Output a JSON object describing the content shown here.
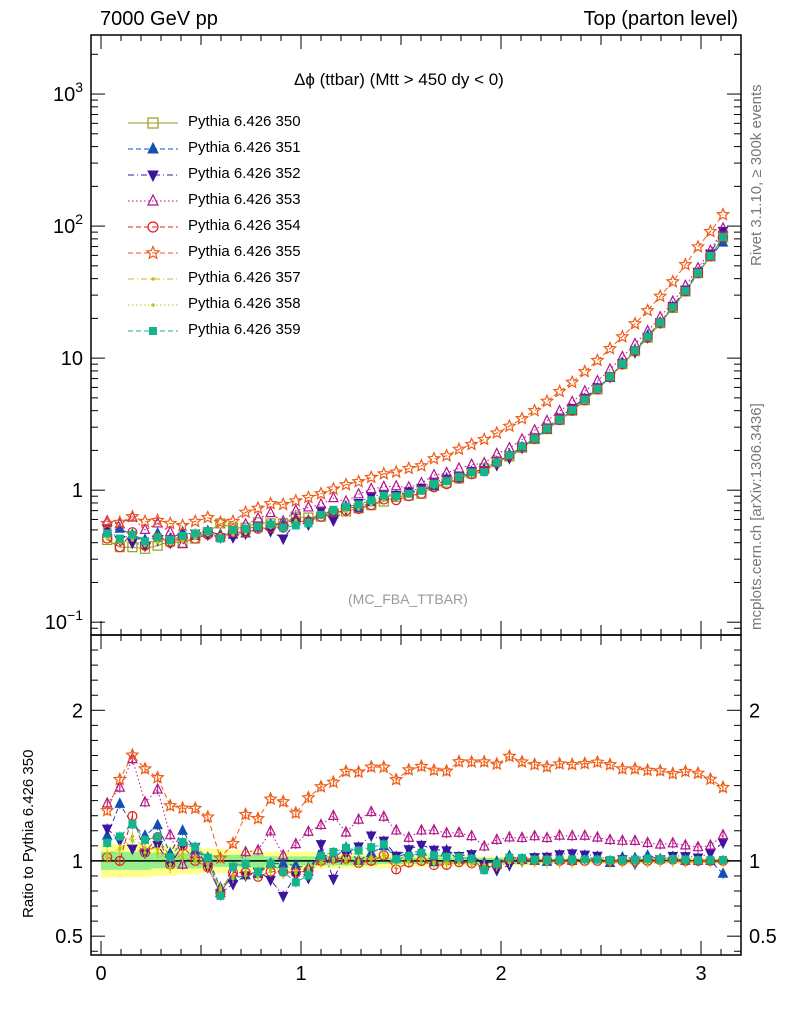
{
  "header": {
    "left": "7000 GeV pp",
    "right": "Top (parton level)"
  },
  "side_labels": {
    "rivet": "Rivet 3.1.10, ≥ 300k events",
    "mcplots": "mcplots.cern.ch [arXiv:1306.3436]"
  },
  "chart_data": [
    {
      "type": "line",
      "panel": "main",
      "title": "Δϕ (ttbar) (Mtt > 450 dy < 0)",
      "subtitle": "(MC_FBA_TTBAR)",
      "yscale": "log",
      "ylim": [
        0.08,
        2800
      ],
      "xlim": [
        -0.05,
        3.2
      ],
      "legend_position": "top-left",
      "x_ticks": [
        "0",
        "1",
        "2",
        "3"
      ],
      "y_tick_labels": [
        "10^-1",
        "1",
        "10",
        "10^2",
        "10^3"
      ],
      "x": [
        0.031,
        0.094,
        0.157,
        0.22,
        0.283,
        0.346,
        0.408,
        0.471,
        0.534,
        0.597,
        0.66,
        0.723,
        0.785,
        0.848,
        0.911,
        0.974,
        1.037,
        1.1,
        1.162,
        1.225,
        1.288,
        1.351,
        1.414,
        1.476,
        1.539,
        1.602,
        1.665,
        1.728,
        1.79,
        1.853,
        1.916,
        1.979,
        2.042,
        2.105,
        2.168,
        2.23,
        2.293,
        2.356,
        2.419,
        2.482,
        2.545,
        2.607,
        2.67,
        2.733,
        2.796,
        2.859,
        2.922,
        2.985,
        3.047,
        3.11
      ],
      "series": [
        {
          "name": "Pythia 6.426 350",
          "color": "#9a9a1e",
          "marker": "open-square",
          "dash": "solid",
          "values": [
            0.42,
            0.37,
            0.37,
            0.36,
            0.38,
            0.41,
            0.4,
            0.43,
            0.48,
            0.56,
            0.52,
            0.52,
            0.57,
            0.56,
            0.56,
            0.63,
            0.62,
            0.63,
            0.67,
            0.69,
            0.73,
            0.77,
            0.82,
            0.89,
            0.91,
            0.94,
            1.08,
            1.14,
            1.23,
            1.34,
            1.46,
            1.65,
            1.8,
            2.1,
            2.44,
            2.9,
            3.4,
            4.0,
            4.8,
            5.8,
            7.2,
            9.0,
            11.3,
            14.3,
            18.4,
            24.0,
            32.0,
            44.0,
            59.0,
            82.0
          ]
        },
        {
          "name": "Pythia 6.426 351",
          "color": "#1450b4",
          "marker": "filled-triangle-up",
          "dash": "dashed",
          "values": [
            0.49,
            0.51,
            0.46,
            0.42,
            0.47,
            0.43,
            0.48,
            0.46,
            0.49,
            0.46,
            0.46,
            0.47,
            0.52,
            0.55,
            0.55,
            0.61,
            0.59,
            0.66,
            0.68,
            0.75,
            0.73,
            0.81,
            0.9,
            0.91,
            0.96,
            1.0,
            1.07,
            1.22,
            1.24,
            1.38,
            1.44,
            1.64,
            1.86,
            2.11,
            2.44,
            2.88,
            3.42,
            4.0,
            4.9,
            5.9,
            7.1,
            9.2,
            11.5,
            14.8,
            18.6,
            24.5,
            32.0,
            44.0,
            59.0,
            75.0
          ]
        },
        {
          "name": "Pythia 6.426 352",
          "color": "#3c14a0",
          "marker": "filled-triangle-down",
          "dash": "dashdot",
          "values": [
            0.51,
            0.42,
            0.4,
            0.38,
            0.42,
            0.4,
            0.44,
            0.47,
            0.46,
            0.44,
            0.44,
            0.47,
            0.53,
            0.49,
            0.43,
            0.57,
            0.55,
            0.7,
            0.59,
            0.72,
            0.8,
            0.9,
            0.93,
            0.92,
            0.98,
            1.04,
            1.16,
            1.22,
            1.27,
            1.4,
            1.42,
            1.55,
            1.75,
            2.1,
            2.5,
            2.98,
            3.55,
            4.2,
            5.0,
            6.0,
            7.2,
            9.1,
            11.1,
            14.4,
            18.6,
            24.8,
            33.0,
            45.0,
            62.0,
            92.0
          ]
        },
        {
          "name": "Pythia 6.426 353",
          "color": "#b4148c",
          "marker": "open-triangle-up",
          "dash": "dotted",
          "values": [
            0.58,
            0.55,
            0.62,
            0.5,
            0.56,
            0.48,
            0.39,
            0.45,
            0.48,
            0.44,
            0.48,
            0.55,
            0.61,
            0.67,
            0.58,
            0.7,
            0.74,
            0.78,
            0.87,
            0.82,
            0.93,
            1.02,
            1.06,
            1.07,
            1.05,
            1.13,
            1.3,
            1.35,
            1.46,
            1.56,
            1.6,
            1.88,
            2.08,
            2.42,
            2.84,
            3.34,
            3.97,
            4.66,
            5.6,
            6.7,
            8.2,
            10.2,
            12.8,
            16.0,
            20.4,
            26.8,
            35.3,
            48.0,
            65.0,
            96.0
          ]
        },
        {
          "name": "Pythia 6.426 354",
          "color": "#e61e1e",
          "marker": "open-circle",
          "dash": "dashed",
          "values": [
            0.43,
            0.37,
            0.48,
            0.38,
            0.44,
            0.4,
            0.44,
            0.43,
            0.46,
            0.44,
            0.48,
            0.48,
            0.51,
            0.52,
            0.52,
            0.58,
            0.58,
            0.63,
            0.68,
            0.7,
            0.72,
            0.77,
            0.85,
            0.84,
            0.9,
            0.94,
            1.05,
            1.11,
            1.22,
            1.32,
            1.39,
            1.61,
            1.82,
            2.12,
            2.45,
            2.92,
            3.4,
            4.0,
            4.8,
            5.8,
            7.2,
            9.0,
            11.3,
            14.3,
            18.5,
            24.2,
            32.0,
            44.0,
            59.0,
            82.0
          ]
        },
        {
          "name": "Pythia 6.426 355",
          "color": "#f05a14",
          "marker": "open-star",
          "dash": "dashed",
          "values": [
            0.56,
            0.57,
            0.63,
            0.58,
            0.59,
            0.56,
            0.54,
            0.58,
            0.62,
            0.57,
            0.58,
            0.68,
            0.73,
            0.79,
            0.78,
            0.83,
            0.88,
            0.94,
            1.02,
            1.1,
            1.16,
            1.25,
            1.33,
            1.37,
            1.46,
            1.53,
            1.73,
            1.82,
            2.04,
            2.22,
            2.42,
            2.71,
            3.05,
            3.48,
            4.0,
            4.71,
            5.59,
            6.56,
            7.9,
            9.6,
            11.8,
            14.5,
            18.2,
            22.9,
            29.4,
            37.9,
            51.0,
            69.6,
            91.0,
            122.0
          ]
        },
        {
          "name": "Pythia 6.426 357",
          "color": "#d2b41e",
          "marker": "small-dot",
          "dash": "dashdot",
          "values": [
            0.44,
            0.4,
            0.43,
            0.39,
            0.41,
            0.4,
            0.42,
            0.44,
            0.47,
            0.46,
            0.47,
            0.48,
            0.52,
            0.53,
            0.52,
            0.59,
            0.59,
            0.63,
            0.68,
            0.7,
            0.73,
            0.79,
            0.86,
            0.88,
            0.92,
            0.96,
            1.07,
            1.13,
            1.22,
            1.32,
            1.42,
            1.6,
            1.79,
            2.08,
            2.42,
            2.87,
            3.36,
            3.96,
            4.8,
            5.8,
            7.1,
            8.9,
            11.2,
            14.2,
            18.3,
            23.9,
            31.8,
            43.8,
            58.5,
            81.0
          ]
        },
        {
          "name": "Pythia 6.426 358",
          "color": "#b4c814",
          "marker": "small-dot",
          "dash": "dotted",
          "values": [
            0.43,
            0.4,
            0.42,
            0.38,
            0.4,
            0.39,
            0.41,
            0.43,
            0.46,
            0.45,
            0.46,
            0.47,
            0.51,
            0.52,
            0.51,
            0.58,
            0.58,
            0.62,
            0.67,
            0.69,
            0.72,
            0.78,
            0.85,
            0.87,
            0.91,
            0.95,
            1.06,
            1.12,
            1.21,
            1.31,
            1.41,
            1.59,
            1.78,
            2.07,
            2.41,
            2.85,
            3.34,
            3.94,
            4.78,
            5.78,
            7.08,
            8.88,
            11.1,
            14.1,
            18.2,
            23.8,
            31.6,
            43.6,
            58.3,
            80.5
          ]
        },
        {
          "name": "Pythia 6.426 359",
          "color": "#14b48c",
          "marker": "filled-square",
          "dash": "dashed",
          "values": [
            0.47,
            0.43,
            0.46,
            0.41,
            0.44,
            0.42,
            0.45,
            0.47,
            0.49,
            0.43,
            0.5,
            0.51,
            0.53,
            0.55,
            0.52,
            0.54,
            0.56,
            0.65,
            0.71,
            0.75,
            0.78,
            0.84,
            0.91,
            0.9,
            0.94,
            0.99,
            1.12,
            1.17,
            1.26,
            1.36,
            1.37,
            1.62,
            1.84,
            2.14,
            2.46,
            2.92,
            3.43,
            4.04,
            4.85,
            5.85,
            7.24,
            9.05,
            11.4,
            14.5,
            18.6,
            24.3,
            32.3,
            44.2,
            59.3,
            82.5
          ]
        }
      ]
    },
    {
      "type": "line",
      "panel": "ratio",
      "ylabel": "Ratio to Pythia 6.426 350",
      "ylim": [
        0.375,
        2.5
      ],
      "xlim": [
        -0.05,
        3.2
      ],
      "x_ticks": [
        "0",
        "1",
        "2",
        "3"
      ],
      "y_tick_labels": [
        "0.5",
        "1",
        "2"
      ],
      "band_outer": [
        0.89,
        0.89,
        0.89,
        0.89,
        0.9,
        0.9,
        0.91,
        0.91,
        0.92,
        0.92,
        0.93,
        0.93,
        0.93,
        0.94,
        0.94,
        0.94,
        0.94,
        0.95,
        0.95,
        0.95,
        0.95,
        0.95,
        0.95,
        0.96,
        0.96,
        0.96,
        0.96,
        0.96,
        0.97,
        0.97,
        0.97,
        0.97,
        0.97,
        0.97,
        0.97,
        0.98,
        0.98,
        0.98,
        0.98,
        0.98,
        0.98,
        0.98,
        0.98,
        0.98,
        0.98,
        0.98,
        0.98,
        0.98,
        0.98,
        0.98
      ],
      "band_inner": [
        0.94,
        0.94,
        0.94,
        0.94,
        0.95,
        0.95,
        0.95,
        0.95,
        0.96,
        0.96,
        0.96,
        0.96,
        0.96,
        0.97,
        0.97,
        0.97,
        0.97,
        0.97,
        0.97,
        0.97,
        0.97,
        0.97,
        0.98,
        0.98,
        0.98,
        0.98,
        0.98,
        0.98,
        0.98,
        0.98,
        0.98,
        0.98,
        0.98,
        0.98,
        0.99,
        0.99,
        0.99,
        0.99,
        0.99,
        0.99,
        0.99,
        0.99,
        0.99,
        0.99,
        0.99,
        0.99,
        0.99,
        0.99,
        0.99,
        0.99
      ]
    }
  ]
}
